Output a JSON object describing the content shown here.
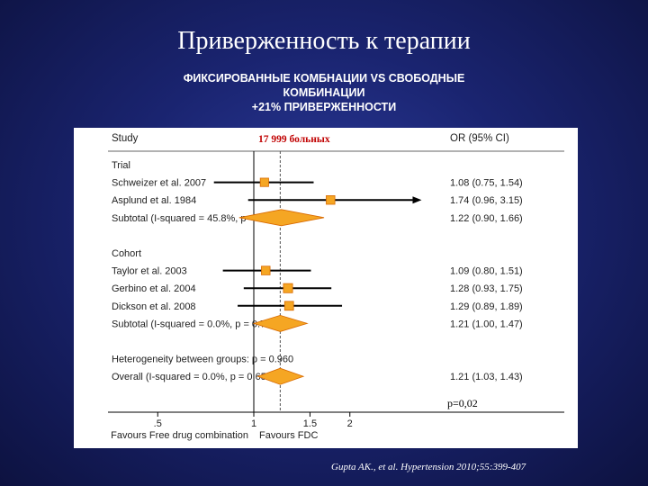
{
  "slide": {
    "title": "Приверженность к терапии",
    "subtitle_lines": [
      "ФИКСИРОВАННЫЕ КОМБНАЦИИ VS СВОБОДНЫЕ",
      "КОМБИНАЦИИ",
      "+21% ПРИВЕРЖЕННОСТИ"
    ],
    "patients_label": "17 999 больных",
    "p_value_label": "р=0,02",
    "citation": "Gupta AK., et al. Hypertension 2010;55:399-407"
  },
  "chart_data": {
    "type": "forest",
    "column_headers": {
      "study": "Study",
      "or": "OR (95% CI)"
    },
    "x_ticks": [
      0.5,
      1,
      1.5,
      2
    ],
    "x_tick_labels": [
      ".5",
      "1",
      "1.5",
      "2"
    ],
    "xlim": [
      0.35,
      3.4
    ],
    "reference_line": 1,
    "overall_line": 1.21,
    "x_axis_labels": {
      "left": "Favours Free drug combination",
      "right": "Favours FDC"
    },
    "colors": {
      "marker": "#f5a623",
      "marker_dark": "#d96a00",
      "line": "#000000",
      "dash": "#555555"
    },
    "rows": [
      {
        "kind": "header",
        "label": "Trial"
      },
      {
        "kind": "study",
        "label": "Schweizer et al. 2007",
        "or": 1.08,
        "ci": [
          0.75,
          1.54
        ],
        "text": "1.08 (0.75, 1.54)",
        "weight": 0.55
      },
      {
        "kind": "study",
        "label": "Asplund et al. 1984",
        "or": 1.74,
        "ci": [
          0.96,
          3.15
        ],
        "text": "1.74 (0.96, 3.15)",
        "weight": 0.6,
        "arrow": true
      },
      {
        "kind": "subtotal",
        "label": "Subtotal  (I-squared = 45.8%, p = 0.175)",
        "or": 1.22,
        "ci": [
          0.9,
          1.66
        ],
        "text": "1.22 (0.90, 1.66)"
      },
      {
        "kind": "blank"
      },
      {
        "kind": "header",
        "label": "Cohort"
      },
      {
        "kind": "study",
        "label": "Taylor et al. 2003",
        "or": 1.09,
        "ci": [
          0.8,
          1.51
        ],
        "text": "1.09 (0.80, 1.51)",
        "weight": 0.6
      },
      {
        "kind": "study",
        "label": "Gerbino et al. 2004",
        "or": 1.28,
        "ci": [
          0.93,
          1.75
        ],
        "text": "1.28 (0.93, 1.75)",
        "weight": 0.7
      },
      {
        "kind": "study",
        "label": "Dickson et al. 2008",
        "or": 1.29,
        "ci": [
          0.89,
          1.89
        ],
        "text": "1.29 (0.89, 1.89)",
        "weight": 0.65
      },
      {
        "kind": "subtotal",
        "label": "Subtotal  (I-squared = 0.0%, p = 0.740)",
        "or": 1.21,
        "ci": [
          1.0,
          1.47
        ],
        "text": "1.21 (1.00, 1.47)"
      },
      {
        "kind": "blank"
      },
      {
        "kind": "header",
        "label": "Heterogeneity between groups: p = 0.960"
      },
      {
        "kind": "subtotal",
        "label": "Overall  (I-squared = 0.0%, p = 0.655)",
        "or": 1.21,
        "ci": [
          1.03,
          1.43
        ],
        "text": "1.21 (1.03, 1.43)"
      }
    ]
  }
}
